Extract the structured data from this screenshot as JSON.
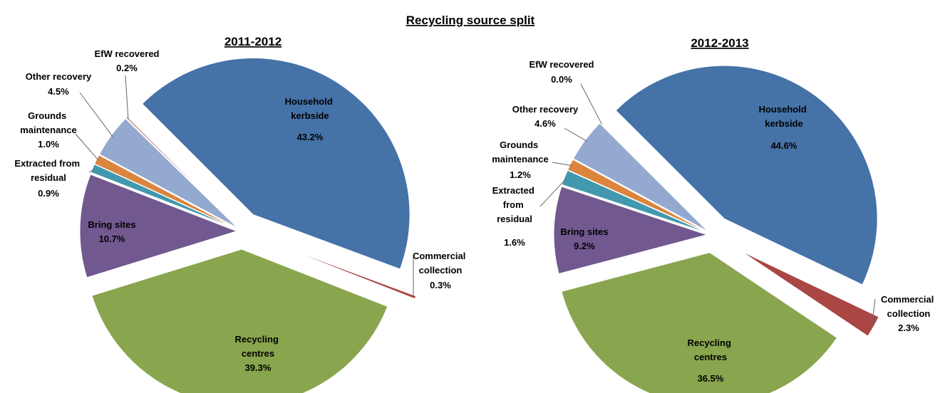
{
  "title": "Recycling source split",
  "chart_data": [
    {
      "type": "pie",
      "title": "2011-2012",
      "categories": [
        "Household kerbside",
        "Commercial collection",
        "Recycling centres",
        "Bring sites",
        "Extracted from residual",
        "Grounds maintenance",
        "Other recovery",
        "EfW recovered"
      ],
      "values": [
        43.2,
        0.3,
        39.3,
        10.7,
        0.9,
        1.0,
        4.5,
        0.2
      ],
      "value_labels": [
        "43.2%",
        "0.3%",
        "39.3%",
        "10.7%",
        "0.9%",
        "1.0%",
        "4.5%",
        "0.2%"
      ],
      "colors": [
        "#4572a7",
        "#aa4643",
        "#89a54e",
        "#71588f",
        "#4198af",
        "#db843d",
        "#93a9cf",
        "#d19392"
      ]
    },
    {
      "type": "pie",
      "title": "2012-2013",
      "categories": [
        "Household kerbside",
        "Commercial collection",
        "Recycling centres",
        "Bring sites",
        "Extracted from residual",
        "Grounds maintenance",
        "Other recovery",
        "EfW recovered"
      ],
      "values": [
        44.6,
        2.3,
        36.5,
        9.2,
        1.6,
        1.2,
        4.6,
        0.0
      ],
      "value_labels": [
        "44.6%",
        "2.3%",
        "36.5%",
        "9.2%",
        "1.6%",
        "1.2%",
        "4.6%",
        "0.0%"
      ],
      "colors": [
        "#4572a7",
        "#aa4643",
        "#89a54e",
        "#71588f",
        "#4198af",
        "#db843d",
        "#93a9cf",
        "#d19392"
      ]
    }
  ]
}
